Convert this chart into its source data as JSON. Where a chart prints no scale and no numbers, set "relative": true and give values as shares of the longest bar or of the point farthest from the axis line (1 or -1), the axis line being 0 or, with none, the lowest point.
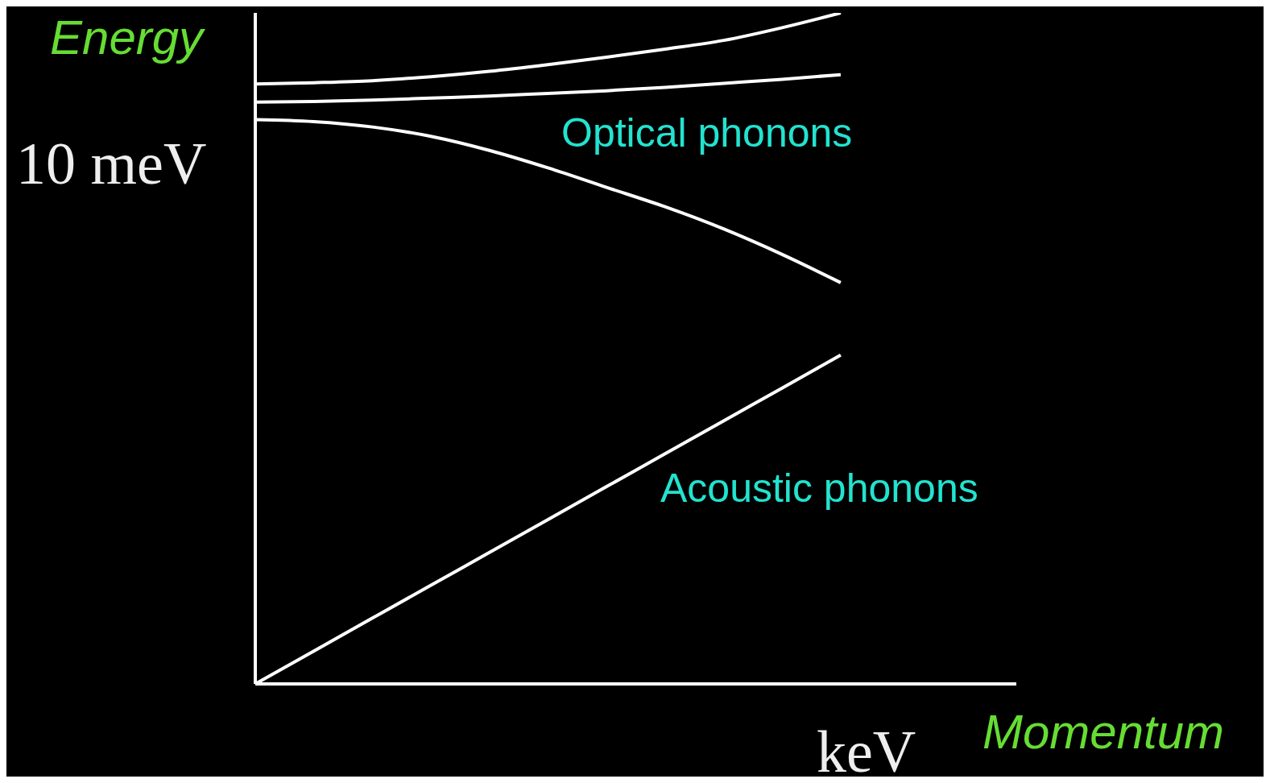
{
  "chart_data": {
    "type": "line",
    "relative": true,
    "xlabel": "Momentum",
    "ylabel": "Energy",
    "categories": [
      null,
      null,
      null,
      null,
      null,
      null,
      null,
      null,
      null,
      null,
      null,
      null,
      null,
      null
    ],
    "series": [
      {
        "color": "#ffffff",
        "values": [
          0.894,
          0.896,
          0.899,
          0.905,
          0.913,
          0.923,
          0.934,
          0.946,
          0.959,
          0.978,
          1.0,
          null,
          null,
          null
        ]
      },
      {
        "color": "#ffffff",
        "values": [
          0.867,
          0.868,
          0.87,
          0.873,
          0.876,
          0.88,
          0.884,
          0.889,
          0.895,
          0.901,
          0.908,
          null,
          null,
          null
        ]
      },
      {
        "color": "#ffffff",
        "values": [
          0.841,
          0.838,
          0.83,
          0.816,
          0.795,
          0.769,
          0.74,
          0.711,
          0.678,
          0.64,
          0.598,
          null,
          null,
          null
        ]
      },
      {
        "color": "#ffffff",
        "values": [
          0,
          0.049,
          0.098,
          0.147,
          0.196,
          0.245,
          0.294,
          0.343,
          0.392,
          0.441,
          0.49,
          null,
          null,
          null
        ]
      }
    ],
    "annotations": [
      "Optical phonons",
      "Acoustic phonons",
      "10 meV",
      "keV"
    ]
  }
}
